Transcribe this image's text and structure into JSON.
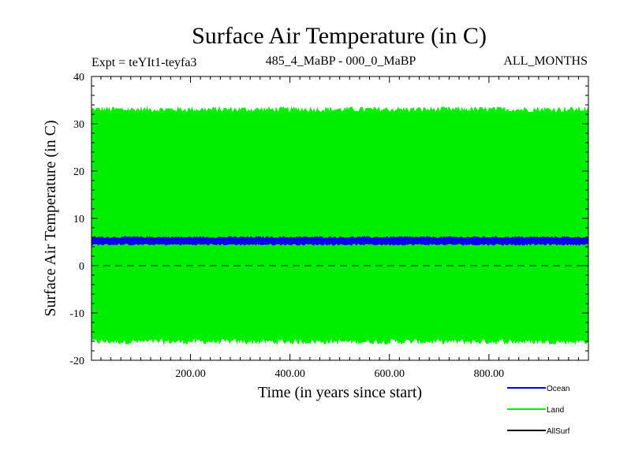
{
  "chart_data": {
    "type": "area",
    "title": "Surface Air Temperature (in C)",
    "subtitle_left": "Expt = teYIt1-teyfa3",
    "subtitle_center": "485_4_MaBP - 000_0_MaBP",
    "subtitle_right": "ALL_MONTHS",
    "xlabel": "Time (in years since start)",
    "ylabel": "Surface Air Temperature (in C)",
    "xlim": [
      1,
      1000
    ],
    "ylim": [
      -20,
      40
    ],
    "xticks": [
      200,
      400,
      600,
      800
    ],
    "xtick_labels": [
      "200.00",
      "400.00",
      "600.00",
      "800.00"
    ],
    "yticks": [
      -20,
      -10,
      0,
      10,
      20,
      30,
      40
    ],
    "ytick_labels": [
      "-20",
      "-10",
      "0",
      "10",
      "20",
      "30",
      "40"
    ],
    "reference_line": 0,
    "series": [
      {
        "name": "Land",
        "color": "#00ee00",
        "min": -16,
        "max": 33,
        "noise": 1.2
      },
      {
        "name": "Ocean",
        "color": "#0000ee",
        "min": 4.5,
        "max": 6.0,
        "noise": 0.4
      },
      {
        "name": "AllSurf",
        "color": "#000000"
      }
    ],
    "legend": {
      "position": "bottom-right",
      "entries": [
        "Ocean",
        "Land",
        "AllSurf"
      ],
      "colors": [
        "#0000ee",
        "#00ee00",
        "#000000"
      ]
    }
  }
}
